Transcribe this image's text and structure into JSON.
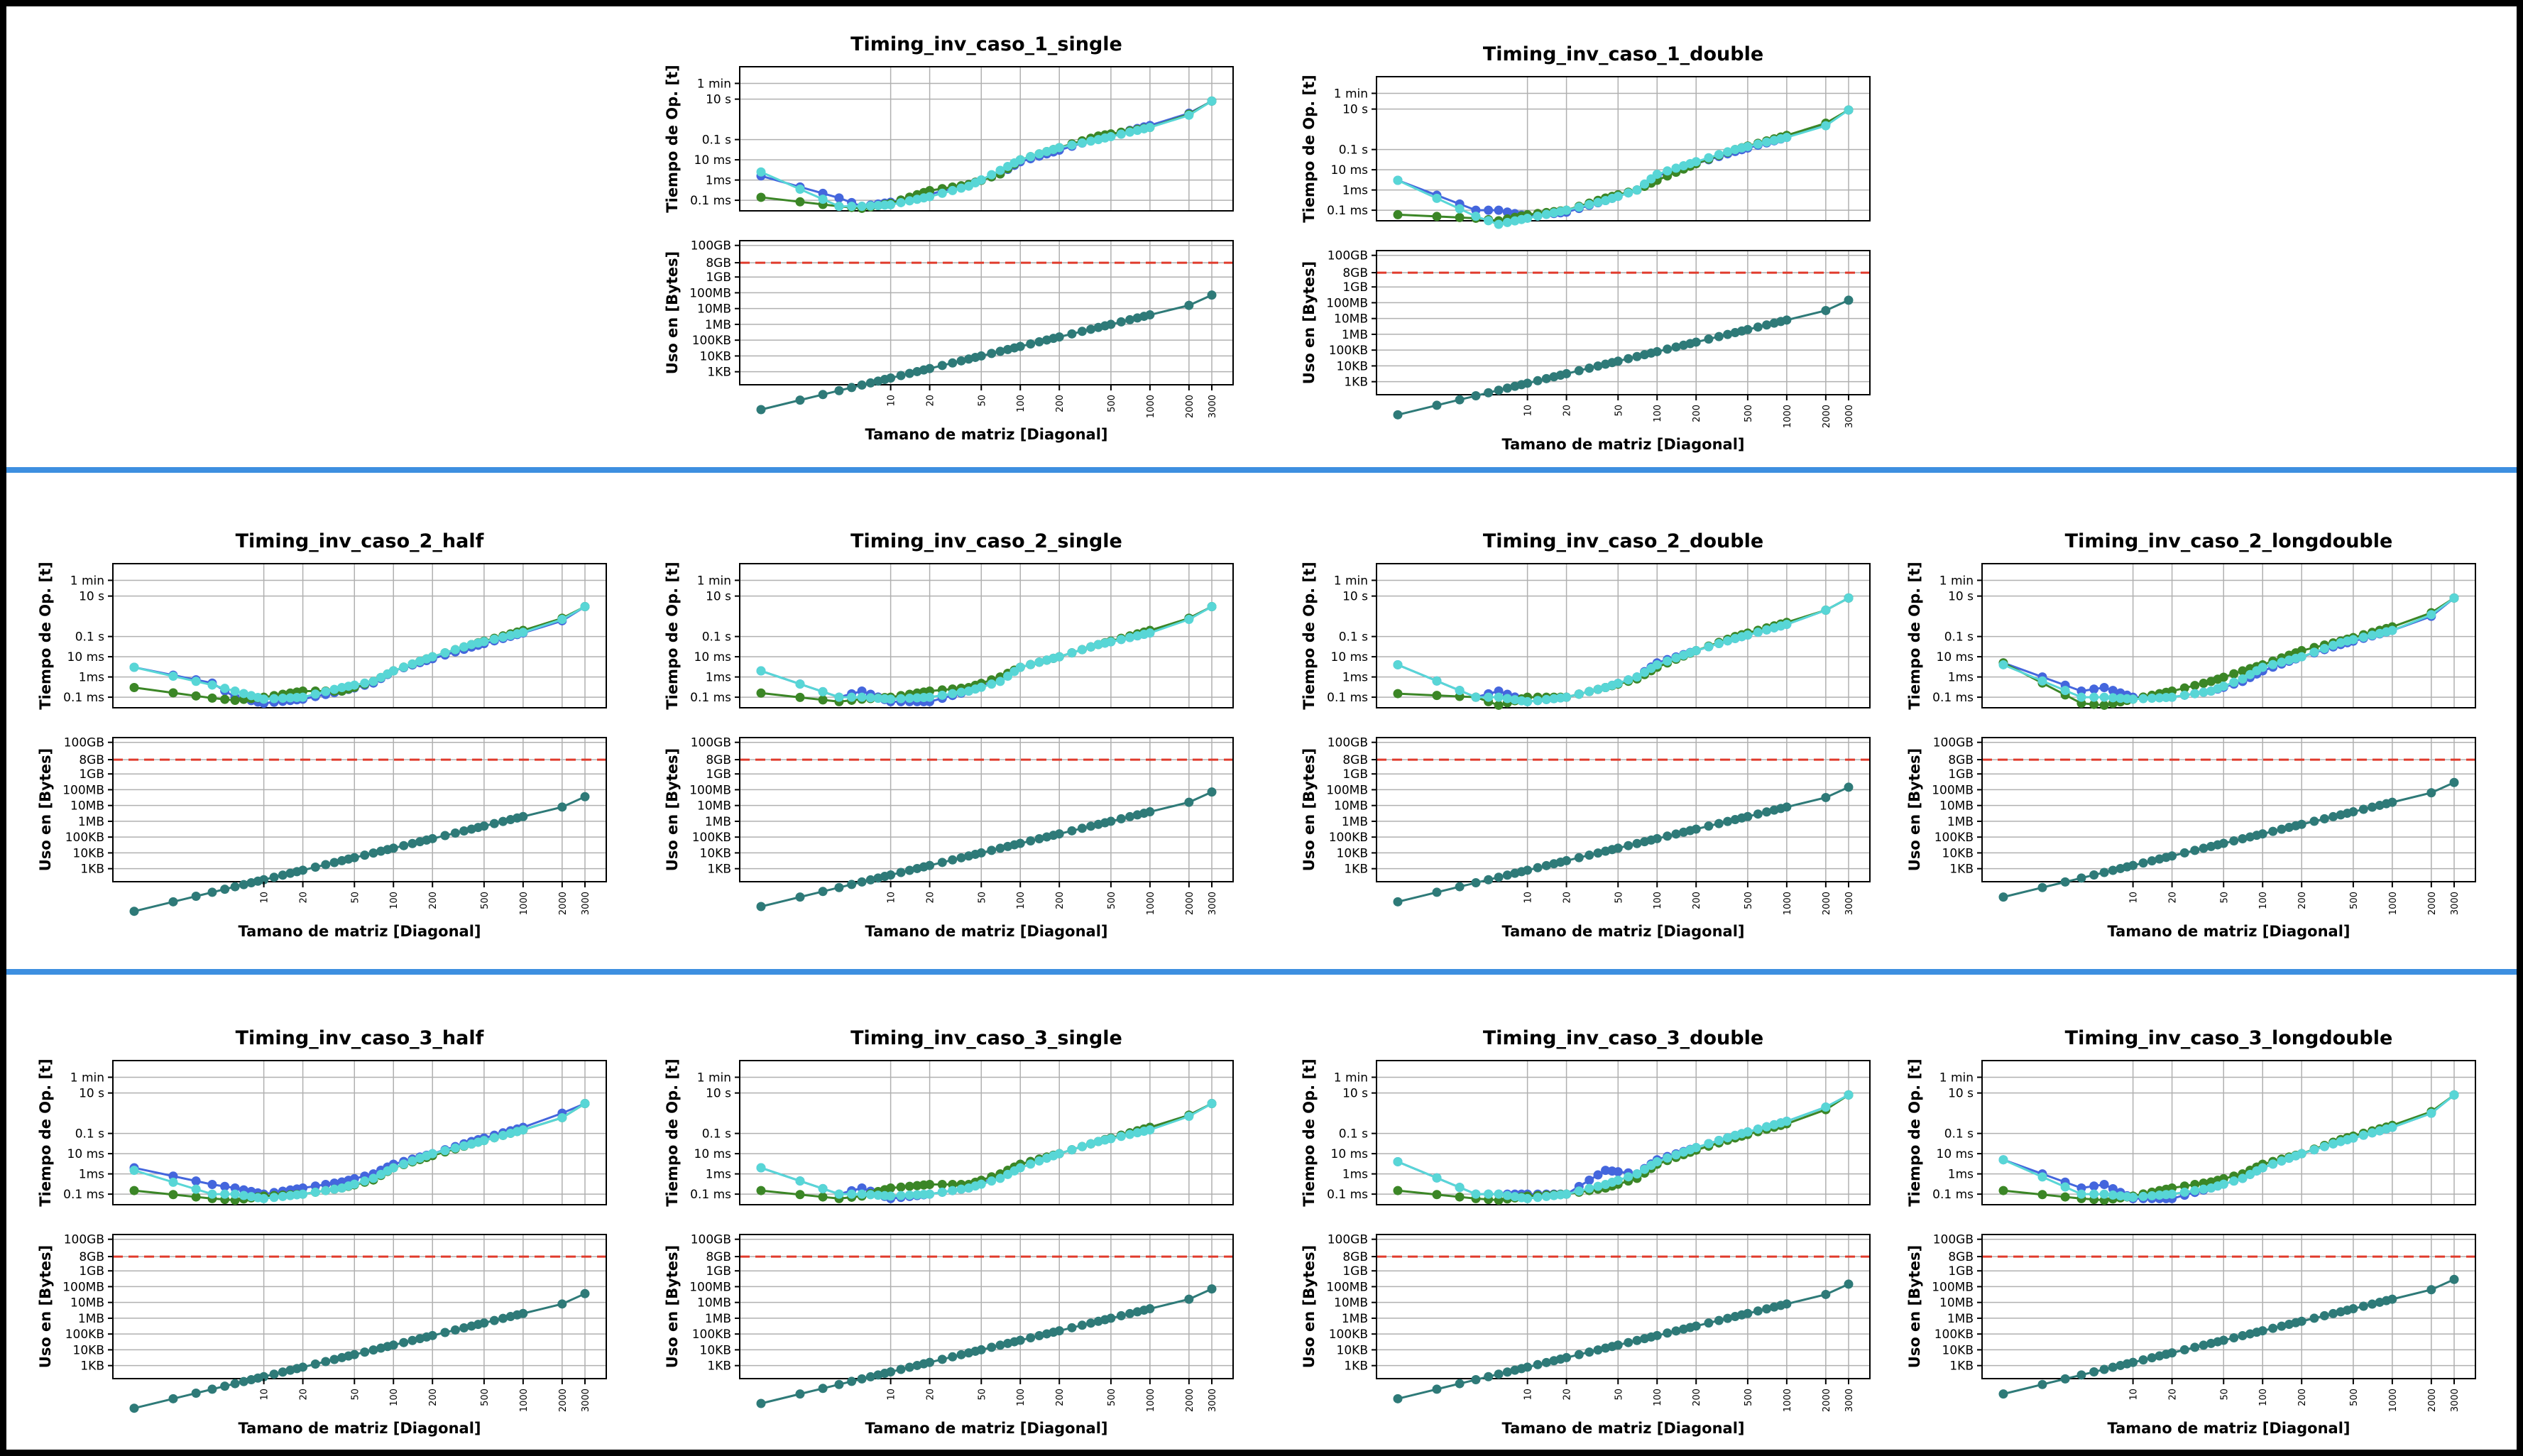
{
  "colors": {
    "separator": "#3d8fe0",
    "blue": "#4466dd",
    "green": "#3b8626",
    "cyan": "#58d6d6",
    "memory": "#2e7a78",
    "threshold": "#e03b2c",
    "grid": "#b0b0b0"
  },
  "labels": {
    "time_ylabel": "Tiempo de Op. [t]",
    "mem_ylabel": "Uso en [Bytes]",
    "xlabel": "Tamano de matriz [Diagonal]",
    "time_ticks": [
      "0.1 ms",
      "1ms",
      "10 ms",
      "0.1 s",
      "10 s",
      "1 min"
    ],
    "mem_ticks": [
      "1KB",
      "10KB",
      "100KB",
      "1MB",
      "10MB",
      "100MB",
      "1GB",
      "8GB",
      "100GB"
    ],
    "x_ticks": [
      "10",
      "20",
      "50",
      "100",
      "200",
      "500",
      "1000",
      "2000",
      "3000"
    ]
  },
  "chart_data": [
    {
      "type": "line",
      "title": "Timing_inv_caso_1_single",
      "xscale": "log",
      "yscale": "log",
      "xlim": [
        1,
        3000
      ],
      "grid": true,
      "memory_limit": "8GB",
      "time_series": [
        {
          "values_ms": [
            1.6,
            0.13,
            0.05,
            0.08,
            0.2,
            0.6,
            2,
            8,
            30,
            120,
            500,
            2000,
            8000
          ]
        },
        {
          "values_ms": [
            0.14,
            0.05,
            0.04,
            0.07,
            0.3,
            0.6,
            2,
            10,
            40,
            150,
            400,
            1800,
            8000
          ]
        },
        {
          "values_ms": [
            2.5,
            0.05,
            0.05,
            0.06,
            0.15,
            0.5,
            3,
            10,
            40,
            100,
            400,
            1600,
            8000
          ]
        }
      ],
      "memory_series": {
        "values_bytes": [
          4,
          64,
          400,
          1600,
          6400,
          40000,
          160000,
          1000000,
          4000000,
          16000000,
          72000000
        ]
      }
    },
    {
      "type": "line",
      "title": "Timing_inv_caso_1_double",
      "xscale": "log",
      "yscale": "log",
      "xlim": [
        1,
        3000
      ],
      "grid": true,
      "memory_limit": "8GB",
      "time_series": [
        {
          "values_ms": [
            3,
            0.1,
            0.1,
            0.05,
            0.08,
            0.3,
            1,
            5,
            20,
            80,
            400,
            1800,
            9000
          ]
        },
        {
          "values_ms": [
            0.06,
            0.04,
            0.03,
            0.06,
            0.1,
            0.4,
            1,
            3,
            20,
            100,
            500,
            2000,
            9000
          ]
        },
        {
          "values_ms": [
            3,
            0.05,
            0.02,
            0.04,
            0.1,
            0.3,
            1,
            6,
            25,
            100,
            400,
            1500,
            9000
          ]
        }
      ],
      "memory_series": {
        "values_bytes": [
          8,
          128,
          800,
          3200,
          12800,
          80000,
          320000,
          2000000,
          8000000,
          32000000,
          144000000
        ]
      }
    },
    {
      "type": "line",
      "title": "Timing_inv_caso_2_half",
      "xscale": "log",
      "yscale": "log",
      "xlim": [
        1,
        3000
      ],
      "grid": true,
      "memory_limit": "8GB",
      "time_series": [
        {
          "values_ms": [
            3,
            0.5,
            0.1,
            0.05,
            0.08,
            0.2,
            0.5,
            2,
            8,
            30,
            150,
            600,
            3000
          ]
        },
        {
          "values_ms": [
            0.3,
            0.09,
            0.07,
            0.1,
            0.2,
            0.2,
            0.6,
            2,
            10,
            40,
            200,
            800,
            3000
          ]
        },
        {
          "values_ms": [
            3,
            0.4,
            0.2,
            0.08,
            0.1,
            0.3,
            0.6,
            2,
            10,
            40,
            160,
            700,
            3000
          ]
        }
      ],
      "memory_series": {
        "values_bytes": [
          2,
          32,
          200,
          800,
          3200,
          20000,
          80000,
          500000,
          2000000,
          8000000,
          36000000
        ]
      }
    },
    {
      "type": "line",
      "title": "Timing_inv_caso_2_single",
      "xscale": "log",
      "yscale": "log",
      "xlim": [
        1,
        3000
      ],
      "grid": true,
      "memory_limit": "8GB",
      "time_series": [
        {
          "values_ms": [
            2,
            0.1,
            0.2,
            0.06,
            0.06,
            0.2,
            0.8,
            3,
            10,
            40,
            150,
            800,
            3000
          ]
        },
        {
          "values_ms": [
            0.16,
            0.06,
            0.08,
            0.1,
            0.2,
            0.3,
            1,
            3,
            10,
            40,
            200,
            800,
            3000
          ]
        },
        {
          "values_ms": [
            2,
            0.1,
            0.1,
            0.08,
            0.1,
            0.2,
            0.6,
            3,
            10,
            40,
            150,
            700,
            3000
          ]
        }
      ],
      "memory_series": {
        "values_bytes": [
          4,
          64,
          400,
          1600,
          6400,
          40000,
          160000,
          1000000,
          4000000,
          16000000,
          72000000
        ]
      }
    },
    {
      "type": "line",
      "title": "Timing_inv_caso_2_double",
      "xscale": "log",
      "yscale": "log",
      "xlim": [
        1,
        3000
      ],
      "grid": true,
      "memory_limit": "8GB",
      "time_series": [
        {
          "values_ms": [
            4,
            0.1,
            0.2,
            0.06,
            0.1,
            0.3,
            1,
            5,
            20,
            80,
            400,
            2000,
            8000
          ]
        },
        {
          "values_ms": [
            0.15,
            0.1,
            0.04,
            0.1,
            0.1,
            0.3,
            0.8,
            3,
            20,
            100,
            500,
            2000,
            8000
          ]
        },
        {
          "values_ms": [
            4,
            0.1,
            0.1,
            0.06,
            0.1,
            0.3,
            1,
            4,
            20,
            80,
            400,
            2000,
            8000
          ]
        }
      ],
      "memory_series": {
        "values_bytes": [
          8,
          128,
          800,
          3200,
          12800,
          80000,
          320000,
          2000000,
          8000000,
          32000000,
          144000000
        ]
      }
    },
    {
      "type": "line",
      "title": "Timing_inv_caso_2_longdouble",
      "xscale": "log",
      "yscale": "log",
      "xlim": [
        1,
        3000
      ],
      "grid": true,
      "memory_limit": "8GB",
      "time_series": [
        {
          "values_ms": [
            5,
            0.2,
            0.3,
            0.1,
            0.1,
            0.2,
            0.6,
            2,
            10,
            40,
            200,
            1000,
            8000
          ]
        },
        {
          "values_ms": [
            5,
            0.05,
            0.04,
            0.08,
            0.2,
            0.6,
            2,
            4,
            20,
            60,
            300,
            1500,
            8000
          ]
        },
        {
          "values_ms": [
            4,
            0.1,
            0.1,
            0.08,
            0.1,
            0.2,
            0.8,
            3,
            10,
            50,
            200,
            1200,
            8000
          ]
        }
      ],
      "memory_series": {
        "values_bytes": [
          16,
          256,
          1600,
          6400,
          25600,
          160000,
          640000,
          4000000,
          16000000,
          64000000,
          288000000
        ]
      }
    },
    {
      "type": "line",
      "title": "Timing_inv_caso_3_half",
      "xscale": "log",
      "yscale": "log",
      "xlim": [
        1,
        3000
      ],
      "grid": true,
      "memory_limit": "8GB",
      "time_series": [
        {
          "values_ms": [
            2,
            0.3,
            0.2,
            0.1,
            0.2,
            0.4,
            1,
            3,
            10,
            40,
            200,
            1000,
            3000
          ]
        },
        {
          "values_ms": [
            0.15,
            0.06,
            0.05,
            0.08,
            0.1,
            0.2,
            0.5,
            2,
            8,
            30,
            150,
            600,
            3000
          ]
        },
        {
          "values_ms": [
            1.5,
            0.1,
            0.1,
            0.06,
            0.1,
            0.2,
            0.6,
            2,
            10,
            30,
            150,
            600,
            3000
          ]
        }
      ],
      "memory_series": {
        "values_bytes": [
          2,
          32,
          200,
          800,
          3200,
          20000,
          80000,
          500000,
          2000000,
          8000000,
          36000000
        ]
      }
    },
    {
      "type": "line",
      "title": "Timing_inv_caso_3_single",
      "xscale": "log",
      "yscale": "log",
      "xlim": [
        1,
        3000
      ],
      "grid": true,
      "memory_limit": "8GB",
      "time_series": [
        {
          "values_ms": [
            2,
            0.1,
            0.2,
            0.06,
            0.1,
            0.2,
            0.8,
            3,
            10,
            40,
            200,
            800,
            3000
          ]
        },
        {
          "values_ms": [
            0.15,
            0.06,
            0.08,
            0.2,
            0.3,
            0.3,
            1,
            3,
            10,
            40,
            200,
            800,
            3000
          ]
        },
        {
          "values_ms": [
            2,
            0.1,
            0.1,
            0.08,
            0.1,
            0.2,
            0.6,
            2,
            10,
            40,
            150,
            700,
            3000
          ]
        }
      ],
      "memory_series": {
        "values_bytes": [
          4,
          64,
          400,
          1600,
          6400,
          40000,
          160000,
          1000000,
          4000000,
          16000000,
          72000000
        ]
      }
    },
    {
      "type": "line",
      "title": "Timing_inv_caso_3_double",
      "xscale": "log",
      "yscale": "log",
      "xlim": [
        1,
        3000
      ],
      "grid": true,
      "memory_limit": "8GB",
      "time_series": [
        {
          "values_ms": [
            4,
            0.1,
            0.1,
            0.1,
            0.1,
            1.5,
            1,
            5,
            20,
            80,
            400,
            2000,
            8000
          ]
        },
        {
          "values_ms": [
            0.15,
            0.06,
            0.05,
            0.08,
            0.1,
            0.2,
            0.6,
            3,
            15,
            60,
            300,
            1500,
            8000
          ]
        },
        {
          "values_ms": [
            4,
            0.1,
            0.1,
            0.06,
            0.1,
            0.3,
            1,
            4,
            20,
            80,
            400,
            2000,
            8000
          ]
        }
      ],
      "memory_series": {
        "values_bytes": [
          8,
          128,
          800,
          3200,
          12800,
          80000,
          320000,
          2000000,
          8000000,
          32000000,
          144000000
        ]
      }
    },
    {
      "type": "line",
      "title": "Timing_inv_caso_3_longdouble",
      "xscale": "log",
      "yscale": "log",
      "xlim": [
        1,
        3000
      ],
      "grid": true,
      "memory_limit": "8GB",
      "time_series": [
        {
          "values_ms": [
            5,
            0.2,
            0.3,
            0.06,
            0.06,
            0.2,
            0.6,
            2,
            10,
            40,
            200,
            1000,
            8000
          ]
        },
        {
          "values_ms": [
            0.15,
            0.06,
            0.05,
            0.08,
            0.2,
            0.4,
            1,
            3,
            10,
            50,
            250,
            1200,
            8000
          ]
        },
        {
          "values_ms": [
            5,
            0.1,
            0.1,
            0.07,
            0.1,
            0.2,
            0.6,
            2,
            10,
            40,
            200,
            1000,
            8000
          ]
        }
      ],
      "memory_series": {
        "values_bytes": [
          16,
          256,
          1600,
          6400,
          25600,
          160000,
          640000,
          4000000,
          16000000,
          64000000,
          288000000
        ]
      }
    }
  ]
}
